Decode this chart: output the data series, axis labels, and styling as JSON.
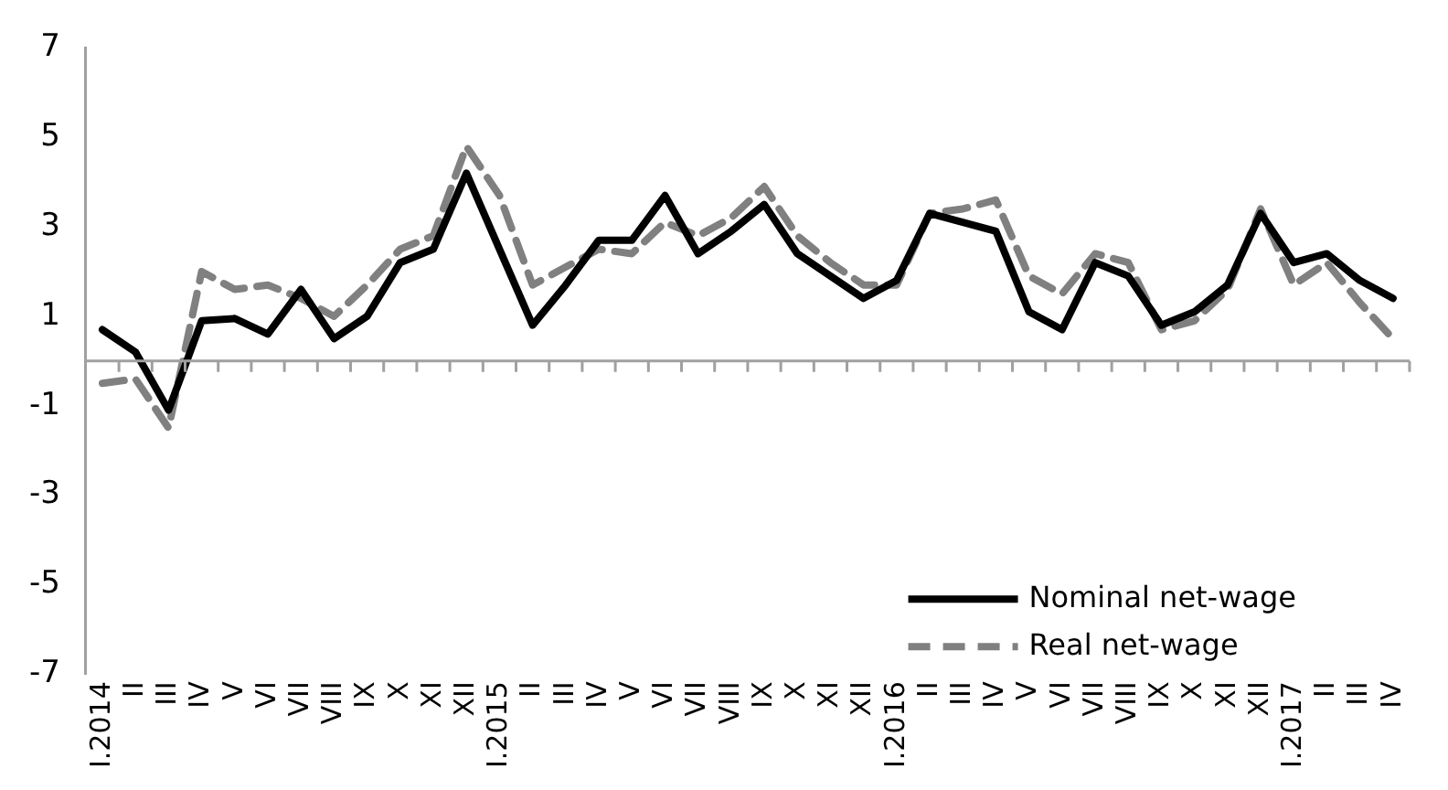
{
  "chart_data": {
    "type": "line",
    "categories": [
      "I.2014",
      "II",
      "III",
      "IV",
      "V",
      "VI",
      "VII",
      "VIII",
      "IX",
      "X",
      "XI",
      "XII",
      "I.2015",
      "II",
      "III",
      "IV",
      "V",
      "VI",
      "VII",
      "VIII",
      "IX",
      "X",
      "XI",
      "XII",
      "I.2016",
      "II",
      "III",
      "IV",
      "V",
      "VI",
      "VII",
      "VIII",
      "IX",
      "X",
      "XI",
      "XII",
      "I.2017",
      "II",
      "III",
      "IV"
    ],
    "series": [
      {
        "name": "Nominal net-wage",
        "color": "#000000",
        "line_style": "solid",
        "values": [
          0.7,
          0.2,
          -1.1,
          0.9,
          0.95,
          0.6,
          1.6,
          0.5,
          1.0,
          2.2,
          2.5,
          4.2,
          2.5,
          0.8,
          1.7,
          2.7,
          2.7,
          3.7,
          2.4,
          2.9,
          3.5,
          2.4,
          1.9,
          1.4,
          1.8,
          3.3,
          3.1,
          2.9,
          1.1,
          0.7,
          2.2,
          1.9,
          0.8,
          1.1,
          1.7,
          3.3,
          2.2,
          2.4,
          1.8,
          1.4
        ]
      },
      {
        "name": "Real net-wage",
        "color": "#808080",
        "line_style": "dashed",
        "values": [
          -0.5,
          -0.4,
          -1.5,
          2.0,
          1.6,
          1.7,
          1.4,
          1.0,
          1.7,
          2.5,
          2.8,
          4.8,
          3.7,
          1.7,
          2.1,
          2.5,
          2.4,
          3.1,
          2.8,
          3.2,
          3.9,
          2.8,
          2.2,
          1.7,
          1.7,
          3.3,
          3.4,
          3.6,
          1.9,
          1.5,
          2.4,
          2.2,
          0.7,
          0.9,
          1.6,
          3.4,
          1.7,
          2.2,
          1.3,
          0.5
        ]
      }
    ],
    "ylim": [
      -7,
      7
    ],
    "yticks": [
      -7,
      -5,
      -3,
      -1,
      1,
      3,
      5,
      7
    ],
    "grid": false,
    "legend": "bottom right",
    "marker": "none"
  }
}
